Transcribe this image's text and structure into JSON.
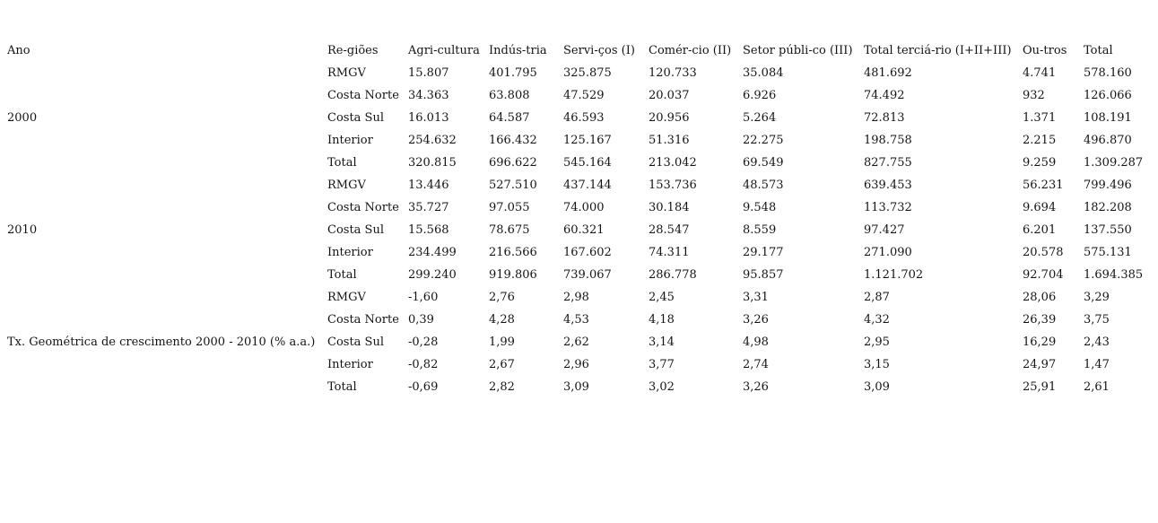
{
  "colors": {
    "background": "#ffffff",
    "text": "#141414"
  },
  "table": {
    "headers": [
      "Ano",
      "Re-giões",
      "Agri-cultura",
      "Indús-tria",
      "Servi-ços (I)",
      "Comér-cio (II)",
      "Setor públi-co (III)",
      "Total terciá-rio (I+II+III)",
      "Ou-tros",
      "Total"
    ],
    "blocks": [
      {
        "label": "2000",
        "rows": [
          {
            "region": "RMGV",
            "values": [
              "15.807",
              "401.795",
              "325.875",
              "120.733",
              "35.084",
              "481.692",
              "4.741",
              "578.160"
            ]
          },
          {
            "region": "Costa Norte",
            "values": [
              "34.363",
              "63.808",
              "47.529",
              "20.037",
              "6.926",
              "74.492",
              "932",
              "126.066"
            ]
          },
          {
            "region": "Costa Sul",
            "values": [
              "16.013",
              "64.587",
              "46.593",
              "20.956",
              "5.264",
              "72.813",
              "1.371",
              "108.191"
            ]
          },
          {
            "region": "Interior",
            "values": [
              "254.632",
              "166.432",
              "125.167",
              "51.316",
              "22.275",
              "198.758",
              "2.215",
              "496.870"
            ]
          },
          {
            "region": "Total",
            "values": [
              "320.815",
              "696.622",
              "545.164",
              "213.042",
              "69.549",
              "827.755",
              "9.259",
              "1.309.287"
            ]
          }
        ]
      },
      {
        "label": "2010",
        "rows": [
          {
            "region": "RMGV",
            "values": [
              "13.446",
              "527.510",
              "437.144",
              "153.736",
              "48.573",
              "639.453",
              "56.231",
              "799.496"
            ]
          },
          {
            "region": "Costa Norte",
            "values": [
              "35.727",
              "97.055",
              "74.000",
              "30.184",
              "9.548",
              "113.732",
              "9.694",
              "182.208"
            ]
          },
          {
            "region": "Costa Sul",
            "values": [
              "15.568",
              "78.675",
              "60.321",
              "28.547",
              "8.559",
              "97.427",
              "6.201",
              "137.550"
            ]
          },
          {
            "region": "Interior",
            "values": [
              "234.499",
              "216.566",
              "167.602",
              "74.311",
              "29.177",
              "271.090",
              "20.578",
              "575.131"
            ]
          },
          {
            "region": "Total",
            "values": [
              "299.240",
              "919.806",
              "739.067",
              "286.778",
              "95.857",
              "1.121.702",
              "92.704",
              "1.694.385"
            ]
          }
        ]
      },
      {
        "label": "Tx. Geométrica de crescimento 2000 - 2010 (% a.a.)",
        "rows": [
          {
            "region": "RMGV",
            "values": [
              "-1,60",
              "2,76",
              "2,98",
              "2,45",
              "3,31",
              "2,87",
              "28,06",
              "3,29"
            ]
          },
          {
            "region": "Costa Norte",
            "values": [
              "0,39",
              "4,28",
              "4,53",
              "4,18",
              "3,26",
              "4,32",
              "26,39",
              "3,75"
            ]
          },
          {
            "region": "Costa Sul",
            "values": [
              "-0,28",
              "1,99",
              "2,62",
              "3,14",
              "4,98",
              "2,95",
              "16,29",
              "2,43"
            ]
          },
          {
            "region": "Interior",
            "values": [
              "-0,82",
              "2,67",
              "2,96",
              "3,77",
              "2,74",
              "3,15",
              "24,97",
              "1,47"
            ]
          },
          {
            "region": "Total",
            "values": [
              "-0,69",
              "2,82",
              "3,09",
              "3,02",
              "3,26",
              "3,09",
              "25,91",
              "2,61"
            ]
          }
        ]
      }
    ]
  }
}
